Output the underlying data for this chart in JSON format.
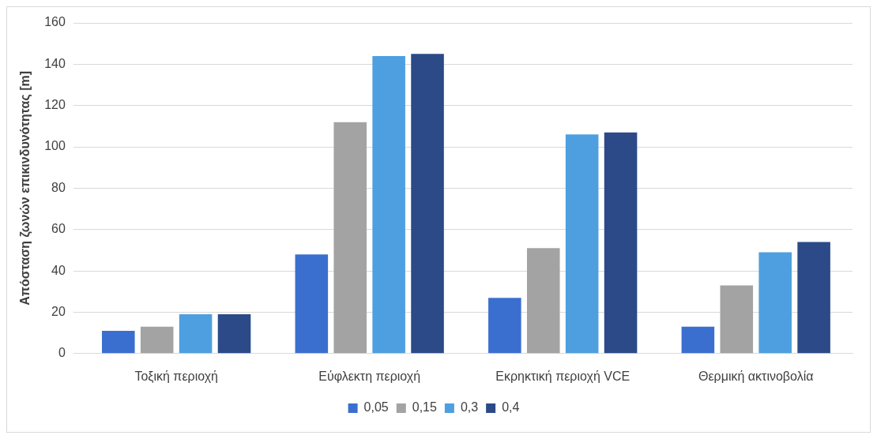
{
  "chart_data": {
    "type": "bar",
    "ylabel": "Απόσταση ζωνών επικινδυνότητας [m]",
    "categories": [
      "Τοξική περιοχή",
      "Εύφλεκτη περιοχή",
      "Εκρηκτική περιοχή VCE",
      "Θερμική ακτινοβολία"
    ],
    "series": [
      {
        "name": "0,05",
        "color": "#3b6fcf",
        "values": [
          11,
          48,
          27,
          13
        ]
      },
      {
        "name": "0,15",
        "color": "#a3a3a3",
        "values": [
          13,
          112,
          51,
          33
        ]
      },
      {
        "name": "0,3",
        "color": "#4e9fe0",
        "values": [
          19,
          144,
          106,
          49
        ]
      },
      {
        "name": "0,4",
        "color": "#2b4a87",
        "values": [
          19,
          145,
          107,
          54
        ]
      }
    ],
    "ylim": [
      0,
      160
    ],
    "yticks": [
      0,
      20,
      40,
      60,
      80,
      100,
      120,
      140,
      160
    ],
    "grid": "y",
    "legend": "bottom"
  }
}
